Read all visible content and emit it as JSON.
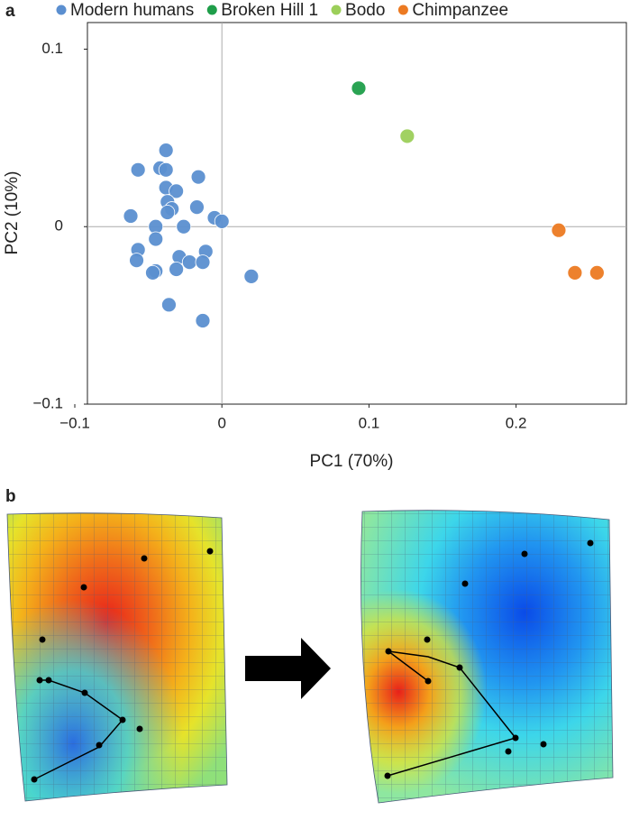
{
  "panel_labels": [
    "a",
    "b"
  ],
  "chart_data": {
    "type": "scatter",
    "x_label": "PC1 (70%)",
    "y_label": "PC2 (10%)",
    "xlim": [
      -0.1,
      0.275
    ],
    "ylim": [
      -0.1,
      0.115
    ],
    "xticks": [
      {
        "value": -0.1,
        "label": "−0.1"
      },
      0,
      0.1,
      0.2
    ],
    "yticks": [
      {
        "value": -0.1,
        "label": "−0.1"
      },
      0,
      0.1
    ],
    "zero_lines": true,
    "legend": "top",
    "series": [
      {
        "name": "Modern humans",
        "color": "#5b8fd0",
        "x": [
          -0.038,
          -0.057,
          -0.042,
          -0.038,
          -0.016,
          -0.038,
          -0.031,
          -0.037,
          -0.034,
          -0.017,
          -0.062,
          -0.037,
          -0.005,
          0.0,
          -0.045,
          -0.026,
          -0.045,
          -0.057,
          -0.011,
          -0.029,
          -0.058,
          -0.022,
          -0.013,
          -0.031,
          -0.045,
          -0.047,
          0.02,
          -0.036,
          -0.013
        ],
        "y": [
          0.043,
          0.032,
          0.033,
          0.032,
          0.028,
          0.022,
          0.02,
          0.014,
          0.01,
          0.011,
          0.006,
          0.008,
          0.005,
          0.003,
          0.0,
          0.0,
          -0.007,
          -0.013,
          -0.014,
          -0.017,
          -0.019,
          -0.02,
          -0.02,
          -0.024,
          -0.025,
          -0.026,
          -0.028,
          -0.044,
          -0.053
        ]
      },
      {
        "name": "Broken Hill 1",
        "color": "#1f9e4a",
        "x": [
          0.093
        ],
        "y": [
          0.078
        ]
      },
      {
        "name": "Bodo",
        "color": "#9ccf5a",
        "x": [
          0.126
        ],
        "y": [
          0.051
        ]
      },
      {
        "name": "Chimpanzee",
        "color": "#ec7a22",
        "x": [
          0.229,
          0.24,
          0.255
        ],
        "y": [
          -0.002,
          -0.026,
          -0.026
        ]
      }
    ]
  }
}
